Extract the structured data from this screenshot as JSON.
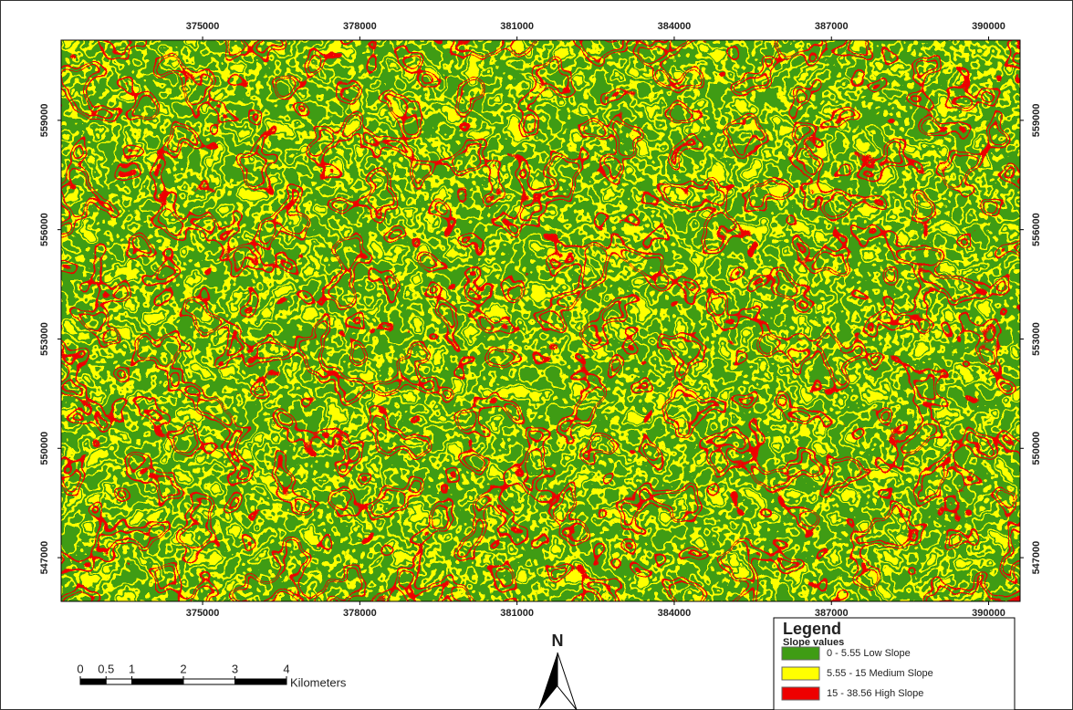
{
  "map": {
    "xticks": [
      375000,
      378000,
      381000,
      384000,
      387000,
      390000
    ],
    "yticks": [
      559000,
      556000,
      553000,
      550000,
      547000
    ],
    "xlim": [
      372300,
      390600
    ],
    "ylim": [
      545800,
      561200
    ],
    "legend": {
      "title": "Legend",
      "subtitle": "Slope values",
      "items": [
        {
          "label": "0 - 5.55 Low Slope",
          "color": "#3f9c14"
        },
        {
          "label": "5.55 - 15 Medium Slope",
          "color": "#ffff00"
        },
        {
          "label": "15 - 38.56 High Slope",
          "color": "#ee0000"
        }
      ]
    },
    "scale_bar": {
      "ticks": [
        0,
        0.5,
        1,
        2,
        3,
        4
      ],
      "unit": "Kilometers"
    },
    "north_arrow": "N"
  }
}
